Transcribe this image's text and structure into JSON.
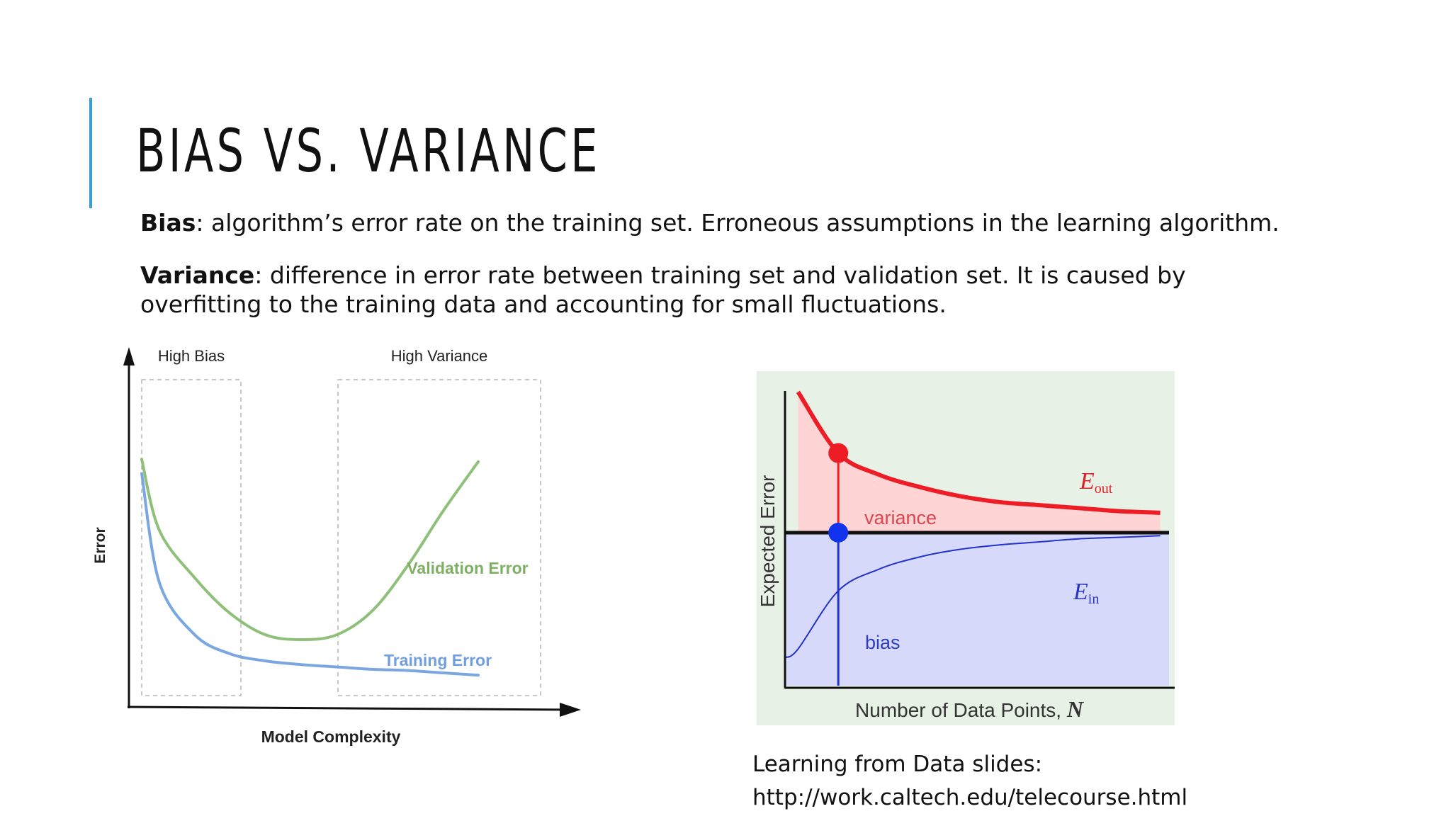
{
  "slide": {
    "title": "BIAS VS. VARIANCE",
    "bias_term": "Bias",
    "bias_def": ": algorithm’s error rate on the training set. Erroneous assumptions in the learning algorithm.",
    "variance_term": "Variance",
    "variance_def": ": difference in error rate between training set and validation set. It is caused by overfitting to the training data and accounting for small fluctuations.",
    "caption_line1": "Learning from Data slides:",
    "caption_line2": "http://work.caltech.edu/telecourse.html",
    "accent_color": "#3a9fd0"
  },
  "chart_data": [
    {
      "type": "line",
      "xlabel": "Model Complexity",
      "ylabel": "Error",
      "regions": [
        "High Bias",
        "High Variance"
      ],
      "series": [
        {
          "name": "Validation Error",
          "color": "#8fc07a",
          "x": [
            0.5,
            1,
            2,
            3,
            4,
            5,
            6,
            7,
            8,
            9,
            10
          ],
          "y": [
            9.6,
            6.6,
            4.6,
            3.1,
            2.2,
            2.0,
            2.2,
            3.2,
            5.1,
            7.4,
            9.5
          ]
        },
        {
          "name": "Training Error",
          "color": "#7aa7e0",
          "x": [
            0.5,
            1,
            2,
            3,
            4,
            5,
            6,
            7,
            8,
            9,
            10
          ],
          "y": [
            9.0,
            4.4,
            2.2,
            1.4,
            1.1,
            0.95,
            0.85,
            0.75,
            0.7,
            0.6,
            0.5
          ]
        }
      ]
    },
    {
      "type": "line",
      "xlabel": "Number of Data Points, ",
      "xlabel_symbol": "N",
      "ylabel": "Expected Error",
      "bias_label": "bias",
      "variance_label": "variance",
      "eout_symbol": "E",
      "eout_sub": "out",
      "ein_symbol": "E",
      "ein_sub": "in",
      "series": [
        {
          "name": "E_out",
          "color": "#ee1c25",
          "x": [
            1,
            2,
            3,
            4,
            5,
            6,
            7,
            8,
            9,
            10
          ],
          "y": [
            9.6,
            7.6,
            6.9,
            6.5,
            6.2,
            6.0,
            5.9,
            5.8,
            5.7,
            5.65
          ]
        },
        {
          "name": "E_in",
          "color": "#2233cc",
          "x": [
            1,
            2,
            3,
            4,
            5,
            6,
            7,
            8,
            9,
            10
          ],
          "y": [
            1.2,
            3.1,
            3.8,
            4.2,
            4.45,
            4.6,
            4.7,
            4.8,
            4.85,
            4.9
          ]
        },
        {
          "name": "bias",
          "color": "#111111",
          "x": [
            1,
            10
          ],
          "y": [
            5.0,
            5.0
          ]
        }
      ]
    }
  ]
}
